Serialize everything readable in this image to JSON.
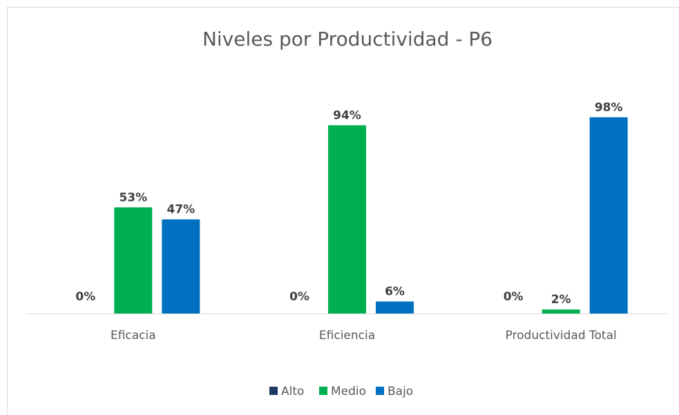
{
  "chart_data": {
    "type": "bar",
    "title": "Niveles por Productividad - P6",
    "categories": [
      "Eficacia",
      "Eficiencia",
      "Productividad Total"
    ],
    "series": [
      {
        "name": "Alto",
        "color": "#203864",
        "values": [
          0,
          0,
          0
        ],
        "value_labels": [
          "0%",
          "0%",
          "0%"
        ]
      },
      {
        "name": "Medio",
        "color": "#00b050",
        "values": [
          53,
          94,
          2
        ],
        "value_labels": [
          "53%",
          "94%",
          "2%"
        ]
      },
      {
        "name": "Bajo",
        "color": "#0070c0",
        "values": [
          47,
          6,
          98
        ],
        "value_labels": [
          "47%",
          "6%",
          "98%"
        ]
      }
    ],
    "ylim": [
      0,
      100
    ],
    "legend": "bottom"
  }
}
